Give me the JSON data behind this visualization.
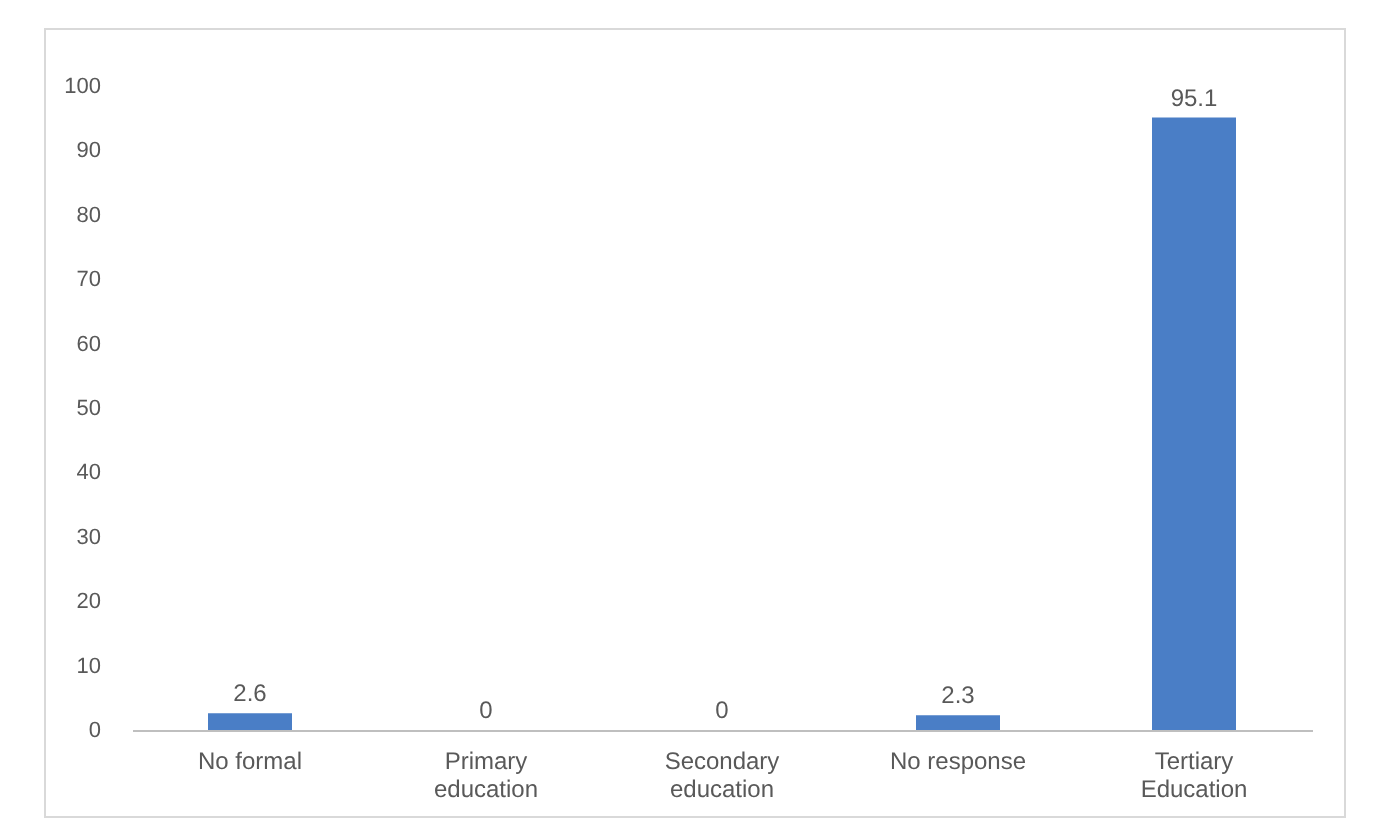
{
  "chart_data": {
    "type": "bar",
    "categories": [
      "No formal",
      "Primary education",
      "Secondary education",
      "No response",
      "Tertiary Education"
    ],
    "values": [
      2.6,
      0,
      0,
      2.3,
      95.1
    ],
    "color": "#4a7ec6",
    "ylim": [
      0,
      100
    ],
    "yticks": [
      0,
      10,
      20,
      30,
      40,
      50,
      60,
      70,
      80,
      90,
      100
    ],
    "grid": false,
    "data_labels": true
  }
}
